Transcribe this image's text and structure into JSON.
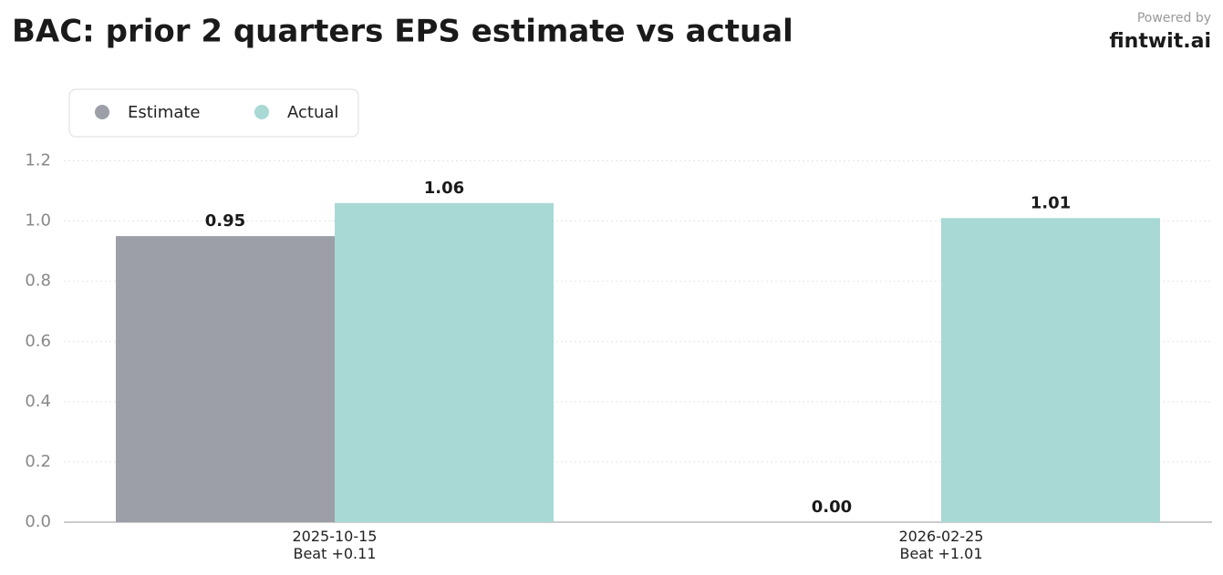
{
  "chart_data": {
    "type": "bar",
    "title": "BAC: prior 2 quarters EPS estimate vs actual",
    "brand_caption": "Powered by",
    "brand": "fintwit.ai",
    "categories": [
      "2025-10-15\nBeat +0.11",
      "2026-02-25\nBeat +1.01"
    ],
    "series": [
      {
        "name": "Estimate",
        "color": "#9c9fa7",
        "values": [
          0.95,
          0
        ],
        "value_labels": [
          "0.95",
          "0.00"
        ]
      },
      {
        "name": "Actual",
        "color": "#a8d9d5",
        "values": [
          1.06,
          1.01
        ]
      }
    ],
    "ylim": [
      0,
      1.25
    ],
    "yticks": [
      {
        "value": 0,
        "label": "0.0"
      },
      0.2,
      0.4,
      0.6,
      0.8,
      {
        "value": 1,
        "label": "1.0"
      },
      1.2
    ],
    "grid": true,
    "legend": "top-left"
  }
}
